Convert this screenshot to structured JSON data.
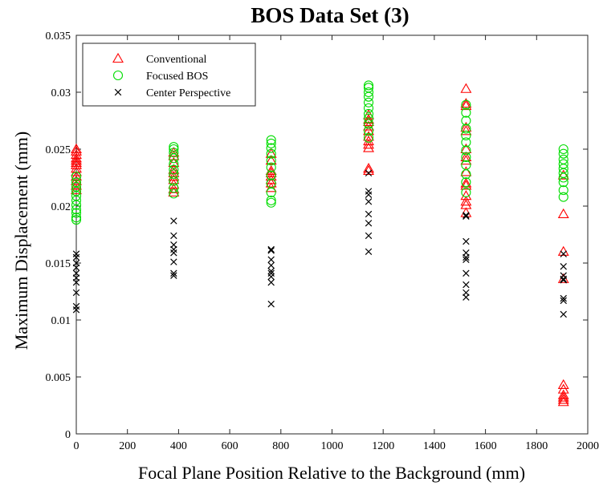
{
  "chart_data": {
    "type": "scatter",
    "title": "BOS Data Set (3)",
    "xlabel": "Focal Plane Position Relative to the Background (mm)",
    "ylabel": "Maximum Displacement (mm)",
    "xlim": [
      0,
      2000
    ],
    "ylim": [
      0,
      0.035
    ],
    "xticks": [
      "0",
      "200",
      "400",
      "600",
      "800",
      "1000",
      "1200",
      "1400",
      "1600",
      "1800",
      "2000"
    ],
    "yticks": [
      "0",
      "0.005",
      "0.01",
      "0.015",
      "0.02",
      "0.025",
      "0.03",
      "0.035"
    ],
    "legend_position": "top-left",
    "grid": false,
    "series": [
      {
        "name": "Conventional",
        "marker": "triangle",
        "color": "#ff0000",
        "points": [
          [
            0,
            0.025
          ],
          [
            0,
            0.0248
          ],
          [
            0,
            0.0245
          ],
          [
            0,
            0.0242
          ],
          [
            0,
            0.024
          ],
          [
            0,
            0.0238
          ],
          [
            0,
            0.0236
          ],
          [
            0,
            0.0233
          ],
          [
            0,
            0.023
          ],
          [
            0,
            0.0226
          ],
          [
            0,
            0.0222
          ],
          [
            0,
            0.0218
          ],
          [
            0,
            0.0214
          ],
          [
            381,
            0.0247
          ],
          [
            381,
            0.0244
          ],
          [
            381,
            0.0238
          ],
          [
            381,
            0.0232
          ],
          [
            381,
            0.0229
          ],
          [
            381,
            0.0226
          ],
          [
            381,
            0.0223
          ],
          [
            381,
            0.0219
          ],
          [
            381,
            0.0215
          ],
          [
            381,
            0.0212
          ],
          [
            762,
            0.0246
          ],
          [
            762,
            0.024
          ],
          [
            762,
            0.0231
          ],
          [
            762,
            0.0229
          ],
          [
            762,
            0.0226
          ],
          [
            762,
            0.0223
          ],
          [
            762,
            0.022
          ],
          [
            762,
            0.0216
          ],
          [
            1143,
            0.028
          ],
          [
            1143,
            0.0276
          ],
          [
            1143,
            0.0274
          ],
          [
            1143,
            0.027
          ],
          [
            1143,
            0.0266
          ],
          [
            1143,
            0.0261
          ],
          [
            1143,
            0.0257
          ],
          [
            1143,
            0.0254
          ],
          [
            1143,
            0.0251
          ],
          [
            1143,
            0.0233
          ],
          [
            1143,
            0.0231
          ],
          [
            1524,
            0.0303
          ],
          [
            1524,
            0.029
          ],
          [
            1524,
            0.0288
          ],
          [
            1524,
            0.0269
          ],
          [
            1524,
            0.0266
          ],
          [
            1524,
            0.025
          ],
          [
            1524,
            0.0243
          ],
          [
            1524,
            0.024
          ],
          [
            1524,
            0.023
          ],
          [
            1524,
            0.022
          ],
          [
            1524,
            0.0218
          ],
          [
            1524,
            0.0209
          ],
          [
            1524,
            0.0204
          ],
          [
            1524,
            0.0201
          ],
          [
            1524,
            0.0194
          ],
          [
            1905,
            0.0227
          ],
          [
            1905,
            0.0193
          ],
          [
            1905,
            0.016
          ],
          [
            1905,
            0.0136
          ],
          [
            1905,
            0.0043
          ],
          [
            1905,
            0.0039
          ],
          [
            1905,
            0.0034
          ],
          [
            1905,
            0.0032
          ],
          [
            1905,
            0.003
          ],
          [
            1905,
            0.0028
          ]
        ]
      },
      {
        "name": "Focused BOS",
        "marker": "circle",
        "color": "#00dd00",
        "points": [
          [
            0,
            0.0226
          ],
          [
            0,
            0.0221
          ],
          [
            0,
            0.0217
          ],
          [
            0,
            0.0213
          ],
          [
            0,
            0.0209
          ],
          [
            0,
            0.0205
          ],
          [
            0,
            0.0201
          ],
          [
            0,
            0.0197
          ],
          [
            0,
            0.0194
          ],
          [
            0,
            0.019
          ],
          [
            0,
            0.0188
          ],
          [
            381,
            0.0252
          ],
          [
            381,
            0.025
          ],
          [
            381,
            0.0247
          ],
          [
            381,
            0.0242
          ],
          [
            381,
            0.0237
          ],
          [
            381,
            0.0232
          ],
          [
            381,
            0.0228
          ],
          [
            381,
            0.0222
          ],
          [
            381,
            0.0216
          ],
          [
            381,
            0.0211
          ],
          [
            762,
            0.0258
          ],
          [
            762,
            0.0255
          ],
          [
            762,
            0.0251
          ],
          [
            762,
            0.0246
          ],
          [
            762,
            0.024
          ],
          [
            762,
            0.0234
          ],
          [
            762,
            0.0227
          ],
          [
            762,
            0.022
          ],
          [
            762,
            0.0212
          ],
          [
            762,
            0.0205
          ],
          [
            762,
            0.0203
          ],
          [
            1143,
            0.0306
          ],
          [
            1143,
            0.0304
          ],
          [
            1143,
            0.03
          ],
          [
            1143,
            0.0296
          ],
          [
            1143,
            0.0291
          ],
          [
            1143,
            0.0286
          ],
          [
            1143,
            0.0281
          ],
          [
            1143,
            0.0277
          ],
          [
            1143,
            0.0272
          ],
          [
            1143,
            0.0266
          ],
          [
            1143,
            0.026
          ],
          [
            1524,
            0.0289
          ],
          [
            1524,
            0.0282
          ],
          [
            1524,
            0.0275
          ],
          [
            1524,
            0.0268
          ],
          [
            1524,
            0.0262
          ],
          [
            1524,
            0.0256
          ],
          [
            1524,
            0.0249
          ],
          [
            1524,
            0.0243
          ],
          [
            1524,
            0.0236
          ],
          [
            1524,
            0.0228
          ],
          [
            1524,
            0.0221
          ],
          [
            1524,
            0.0212
          ],
          [
            1905,
            0.025
          ],
          [
            1905,
            0.0246
          ],
          [
            1905,
            0.0241
          ],
          [
            1905,
            0.0237
          ],
          [
            1905,
            0.0233
          ],
          [
            1905,
            0.0229
          ],
          [
            1905,
            0.0225
          ],
          [
            1905,
            0.0221
          ],
          [
            1905,
            0.0214
          ],
          [
            1905,
            0.0208
          ]
        ]
      },
      {
        "name": "Center Perspective",
        "marker": "x",
        "color": "#000000",
        "points": [
          [
            0,
            0.0158
          ],
          [
            0,
            0.0155
          ],
          [
            0,
            0.015
          ],
          [
            0,
            0.0146
          ],
          [
            0,
            0.0141
          ],
          [
            0,
            0.0137
          ],
          [
            0,
            0.0133
          ],
          [
            0,
            0.0124
          ],
          [
            0,
            0.0112
          ],
          [
            0,
            0.0109
          ],
          [
            381,
            0.0187
          ],
          [
            381,
            0.0174
          ],
          [
            381,
            0.0166
          ],
          [
            381,
            0.0162
          ],
          [
            381,
            0.0159
          ],
          [
            381,
            0.0151
          ],
          [
            381,
            0.0141
          ],
          [
            381,
            0.0139
          ],
          [
            762,
            0.0162
          ],
          [
            762,
            0.0161
          ],
          [
            762,
            0.0153
          ],
          [
            762,
            0.0148
          ],
          [
            762,
            0.0143
          ],
          [
            762,
            0.0141
          ],
          [
            762,
            0.0138
          ],
          [
            762,
            0.0133
          ],
          [
            762,
            0.0114
          ],
          [
            1143,
            0.0229
          ],
          [
            1143,
            0.0213
          ],
          [
            1143,
            0.021
          ],
          [
            1143,
            0.0204
          ],
          [
            1143,
            0.0193
          ],
          [
            1143,
            0.0185
          ],
          [
            1143,
            0.0174
          ],
          [
            1143,
            0.016
          ],
          [
            1524,
            0.0192
          ],
          [
            1524,
            0.0191
          ],
          [
            1524,
            0.0169
          ],
          [
            1524,
            0.0159
          ],
          [
            1524,
            0.0155
          ],
          [
            1524,
            0.0153
          ],
          [
            1524,
            0.0141
          ],
          [
            1524,
            0.0131
          ],
          [
            1524,
            0.0124
          ],
          [
            1524,
            0.012
          ],
          [
            1905,
            0.0158
          ],
          [
            1905,
            0.0147
          ],
          [
            1905,
            0.0139
          ],
          [
            1905,
            0.0136
          ],
          [
            1905,
            0.0135
          ],
          [
            1905,
            0.0119
          ],
          [
            1905,
            0.0117
          ],
          [
            1905,
            0.0105
          ]
        ]
      }
    ]
  }
}
